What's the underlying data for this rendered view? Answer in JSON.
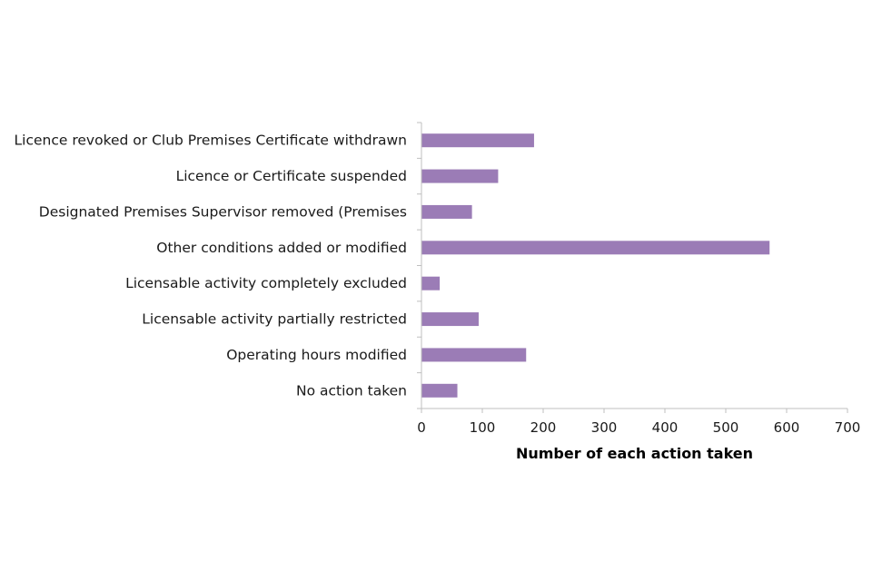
{
  "chart_data": {
    "type": "bar",
    "orientation": "horizontal",
    "categories": [
      "Licence revoked or Club Premises Certificate withdrawn",
      "Licence or Certificate suspended",
      "Designated Premises Supervisor removed (Premises",
      "Other conditions added or modified",
      "Licensable activity completely excluded",
      "Licensable activity partially restricted",
      "Operating hours modified",
      "No action taken"
    ],
    "values": [
      185,
      126,
      83,
      572,
      30,
      94,
      172,
      59
    ],
    "title": "",
    "xlabel": "Number of each action taken",
    "ylabel": "",
    "xlim": [
      0,
      700
    ],
    "xticks": [
      0,
      100,
      200,
      300,
      400,
      500,
      600,
      700
    ],
    "grid": false,
    "legend": "none",
    "bar_color": "#9b7cb6"
  }
}
